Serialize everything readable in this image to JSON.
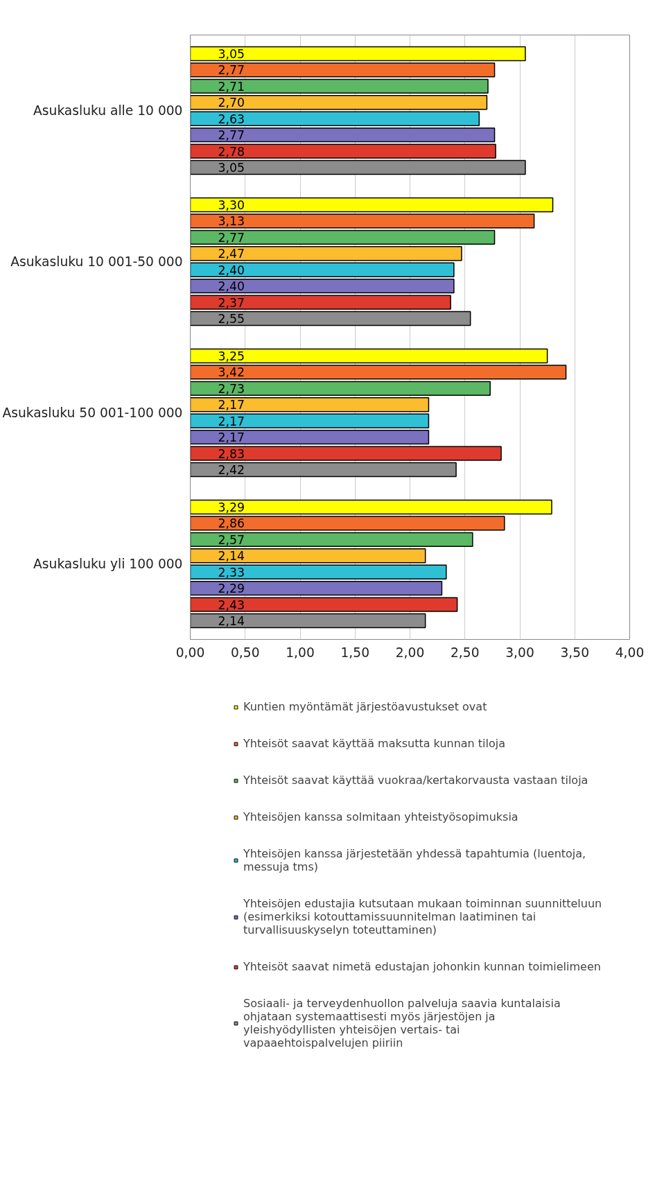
{
  "chart_data": {
    "type": "bar",
    "orientation": "horizontal",
    "categories": [
      "Asukasluku alle 10 000",
      "Asukasluku 10 001-50 000",
      "Asukasluku 50 001-100 000",
      "Asukasluku yli 100 000"
    ],
    "series": [
      {
        "name": "Kuntien myöntämät järjestöavustukset ovat",
        "color": "#ffff00",
        "values": [
          3.05,
          3.3,
          3.25,
          3.29
        ],
        "value_labels": [
          "3,05",
          "3,30",
          "3,25",
          "3,29"
        ]
      },
      {
        "name": "Yhteisöt saavat käyttää maksutta kunnan tiloja",
        "color": "#f26d2b",
        "values": [
          2.77,
          3.13,
          3.42,
          2.86
        ],
        "value_labels": [
          "2,77",
          "3,13",
          "3,42",
          "2,86"
        ]
      },
      {
        "name": "Yhteisöt saavat käyttää vuokraa/kertakorvausta vastaan tiloja",
        "color": "#5cb864",
        "values": [
          2.71,
          2.77,
          2.73,
          2.57
        ],
        "value_labels": [
          "2,71",
          "2,77",
          "2,73",
          "2,57"
        ]
      },
      {
        "name": "Yhteisöjen kanssa solmitaan yhteistyösopimuksia",
        "color": "#fbbc2e",
        "values": [
          2.7,
          2.47,
          2.17,
          2.14
        ],
        "value_labels": [
          "2,70",
          "2,47",
          "2,17",
          "2,14"
        ]
      },
      {
        "name": "Yhteisöjen kanssa järjestetään yhdessä tapahtumia (luentoja, messuja tms)",
        "color": "#2fc0d6",
        "values": [
          2.63,
          2.4,
          2.17,
          2.33
        ],
        "value_labels": [
          "2,63",
          "2,40",
          "2,17",
          "2,33"
        ]
      },
      {
        "name": "Yhteisöjen edustajia kutsutaan mukaan toiminnan suunnitteluun (esimerkiksi kotouttamissuunnitelman laatiminen tai turvallisuuskyselyn toteuttaminen)",
        "color": "#7a72bf",
        "values": [
          2.77,
          2.4,
          2.17,
          2.29
        ],
        "value_labels": [
          "2,77",
          "2,40",
          "2,17",
          "2,29"
        ]
      },
      {
        "name": "Yhteisöt saavat nimetä edustajan johonkin kunnan toimielimeen",
        "color": "#de3b2e",
        "values": [
          2.78,
          2.37,
          2.83,
          2.43
        ],
        "value_labels": [
          "2,78",
          "2,37",
          "2,83",
          "2,43"
        ]
      },
      {
        "name": "Sosiaali- ja terveydenhuollon palveluja saavia kuntalaisia ohjataan systemaattisesti myös järjestöjen ja yleishyödyllisten yhteisöjen vertais- tai vapaaehtoispalvelujen piiriin",
        "color": "#8c8c8c",
        "values": [
          3.05,
          2.55,
          2.42,
          2.14
        ],
        "value_labels": [
          "3,05",
          "2,55",
          "2,42",
          "2,14"
        ]
      }
    ],
    "xlim": [
      0,
      4
    ],
    "xticks": [
      {
        "value": 0,
        "label": "0,00"
      },
      {
        "value": 0.5,
        "label": "0,50"
      },
      {
        "value": 1,
        "label": "1,00"
      },
      {
        "value": 1.5,
        "label": "1,50"
      },
      {
        "value": 2,
        "label": "2,00"
      },
      {
        "value": 2.5,
        "label": "2,50"
      },
      {
        "value": 3,
        "label": "3,00"
      },
      {
        "value": 3.5,
        "label": "3,50"
      },
      {
        "value": 4,
        "label": "4,00"
      }
    ],
    "grid": "x",
    "legend": "bottom"
  }
}
